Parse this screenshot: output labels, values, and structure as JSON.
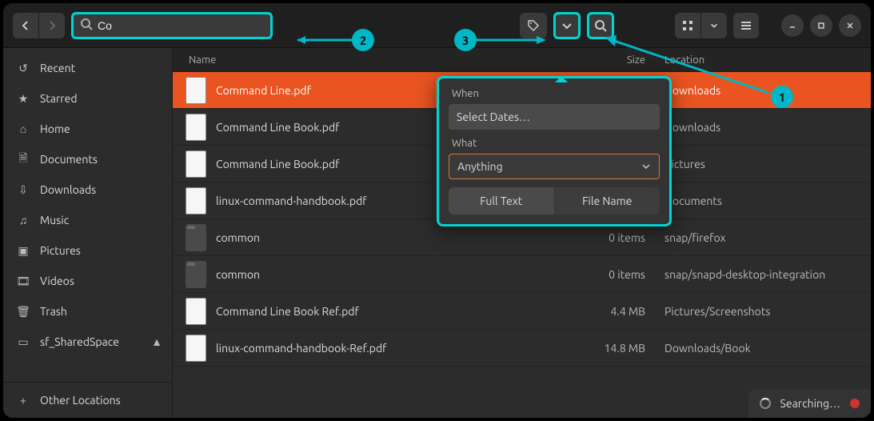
{
  "colors": {
    "accent": "#e95420",
    "highlight": "#00d4d4",
    "callout": "#00b7c7"
  },
  "header": {
    "search_value": "Co",
    "buttons": {
      "back": "‹",
      "forward": "›"
    }
  },
  "sidebar": {
    "items": [
      {
        "icon": "clock-icon",
        "label": "Recent"
      },
      {
        "icon": "star-icon",
        "label": "Starred"
      },
      {
        "icon": "home-icon",
        "label": "Home"
      },
      {
        "icon": "doc-icon",
        "label": "Documents"
      },
      {
        "icon": "download-icon",
        "label": "Downloads"
      },
      {
        "icon": "music-icon",
        "label": "Music"
      },
      {
        "icon": "picture-icon",
        "label": "Pictures"
      },
      {
        "icon": "video-icon",
        "label": "Videos"
      },
      {
        "icon": "trash-icon",
        "label": "Trash"
      },
      {
        "icon": "drive-icon",
        "label": "sf_SharedSpace",
        "eject": true
      }
    ],
    "other": "Other Locations"
  },
  "columns": {
    "name": "Name",
    "size": "Size",
    "location": "Location"
  },
  "files": [
    {
      "name": "Command Line.pdf",
      "size": "",
      "location": "Downloads",
      "type": "pdf",
      "selected": true
    },
    {
      "name": "Command Line Book.pdf",
      "size": "",
      "location": "Downloads",
      "type": "pdf"
    },
    {
      "name": "Command Line Book.pdf",
      "size": "",
      "location": "Pictures",
      "type": "pdf"
    },
    {
      "name": "linux-command-handbook.pdf",
      "size": "",
      "location": "Documents",
      "type": "pdf"
    },
    {
      "name": "common",
      "size": "0 items",
      "location": "snap/firefox",
      "type": "folder"
    },
    {
      "name": "common",
      "size": "0 items",
      "location": "snap/snapd-desktop-integration",
      "type": "folder"
    },
    {
      "name": "Command Line Book Ref.pdf",
      "size": "4.4 MB",
      "location": "Pictures/Screenshots",
      "type": "pdf"
    },
    {
      "name": "linux-command-handbook-Ref.pdf",
      "size": "14.8 MB",
      "location": "Downloads/Book",
      "type": "pdf"
    }
  ],
  "popover": {
    "when_label": "When",
    "when_value": "Select Dates…",
    "what_label": "What",
    "what_value": "Anything",
    "seg_fulltext": "Full Text",
    "seg_filename": "File Name"
  },
  "status": {
    "text": "Searching…"
  },
  "callouts": {
    "c1": "1",
    "c2": "2",
    "c3": "3"
  }
}
